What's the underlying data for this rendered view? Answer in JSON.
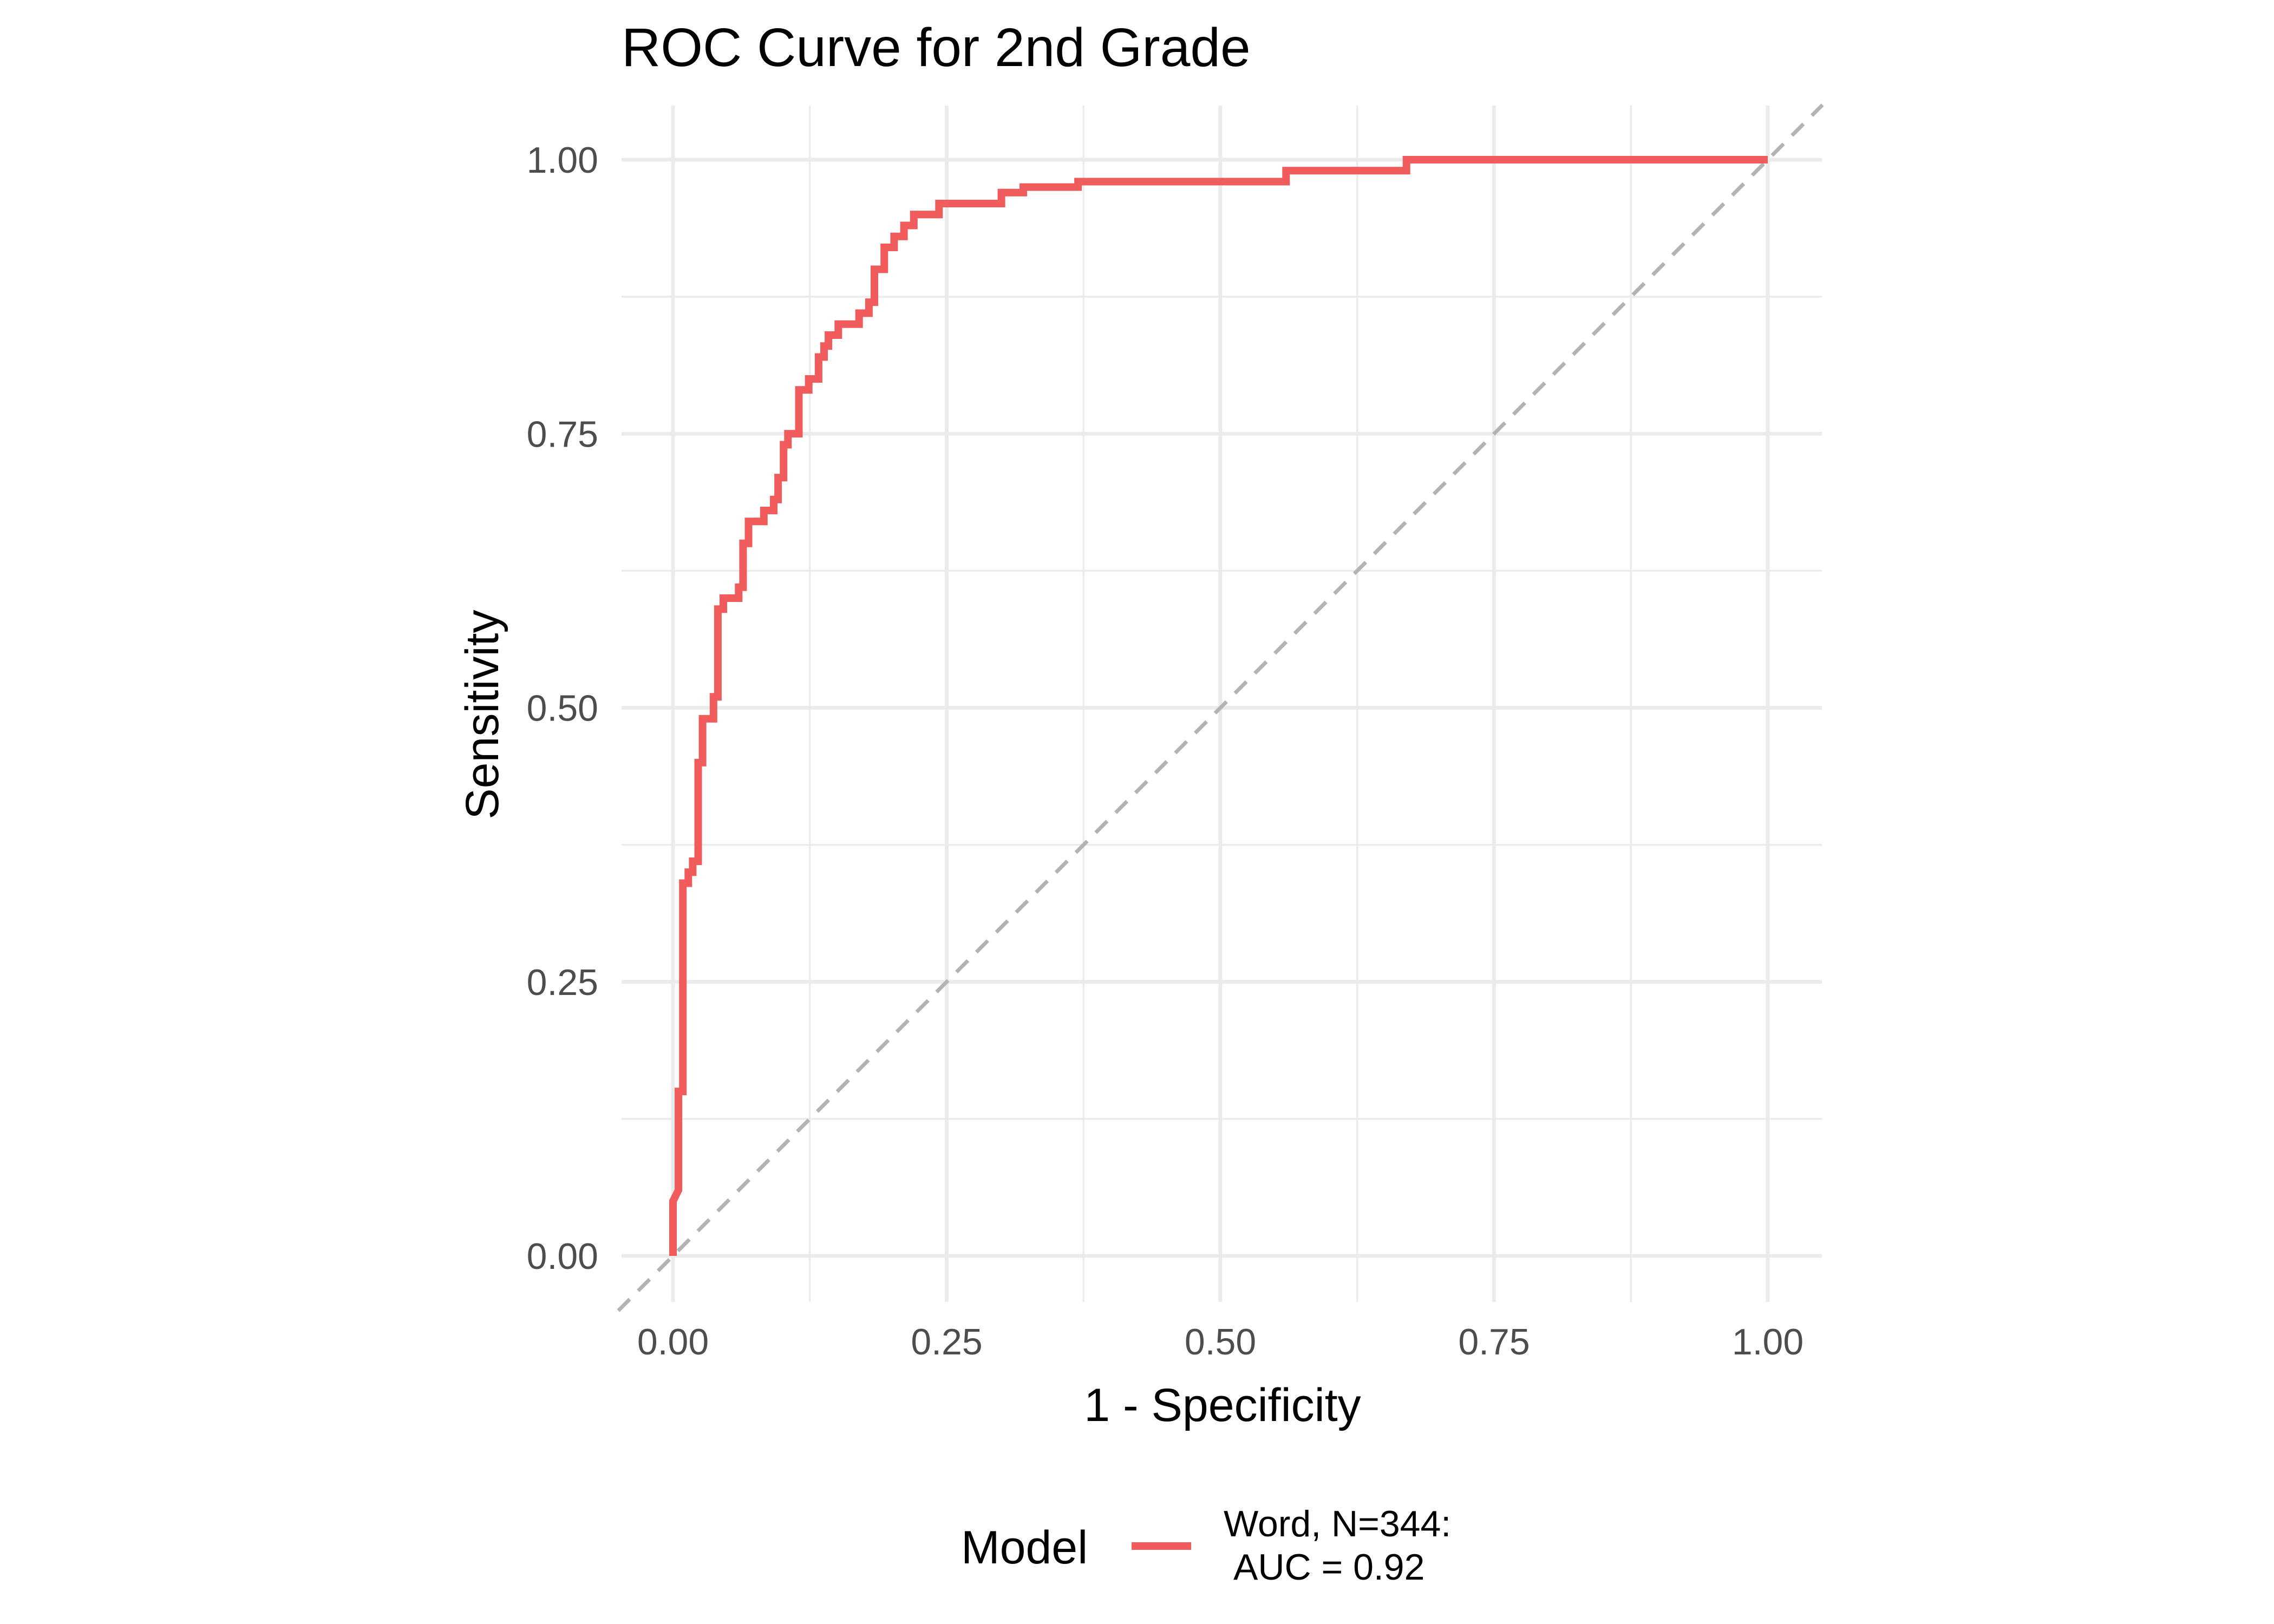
{
  "chart_data": {
    "type": "line",
    "title": "ROC Curve for 2nd Grade",
    "xlabel": "1 - Specificity",
    "ylabel": "Sensitivity",
    "xlim": [
      -0.05,
      1.05
    ],
    "ylim": [
      -0.05,
      1.03
    ],
    "x_ticks": [
      0,
      0.25,
      0.5,
      0.75,
      1
    ],
    "x_tick_labels": [
      "0.00",
      "0.25",
      "0.50",
      "0.75",
      "1.00"
    ],
    "y_ticks": [
      0,
      0.25,
      0.5,
      0.75,
      1
    ],
    "y_tick_labels": [
      "0.00",
      "0.25",
      "0.50",
      "0.75",
      "1.00"
    ],
    "grid": true,
    "legend": {
      "title": "Model",
      "position": "bottom",
      "entries": [
        {
          "line1": "Word, N=344:",
          "line2": "AUC = 0.92",
          "color": "#f05c5c"
        }
      ]
    },
    "reference_line": {
      "style": "dashed",
      "color": "#b3b3b3",
      "from": [
        0,
        0
      ],
      "to": [
        1,
        1
      ]
    },
    "series": [
      {
        "label": "Word, N=344:\nAUC = 0.92",
        "color": "#f05c5c",
        "x": [
          0,
          0,
          0.005,
          0.005,
          0.009,
          0.009,
          0.014,
          0.014,
          0.018,
          0.018,
          0.023,
          0.023,
          0.027,
          0.027,
          0.037,
          0.037,
          0.041,
          0.041,
          0.046,
          0.046,
          0.06,
          0.06,
          0.064,
          0.064,
          0.069,
          0.069,
          0.083,
          0.083,
          0.092,
          0.092,
          0.096,
          0.096,
          0.101,
          0.101,
          0.105,
          0.105,
          0.115,
          0.115,
          0.124,
          0.124,
          0.133,
          0.133,
          0.138,
          0.138,
          0.142,
          0.142,
          0.151,
          0.151,
          0.17,
          0.17,
          0.179,
          0.179,
          0.184,
          0.184,
          0.193,
          0.193,
          0.202,
          0.202,
          0.211,
          0.211,
          0.22,
          0.22,
          0.243,
          0.243,
          0.3,
          0.3,
          0.32,
          0.32,
          0.37,
          0.37,
          0.56,
          0.56,
          0.67,
          0.67,
          1
        ],
        "y": [
          0,
          0.05,
          0.06,
          0.15,
          0.15,
          0.34,
          0.34,
          0.35,
          0.35,
          0.36,
          0.36,
          0.45,
          0.45,
          0.49,
          0.49,
          0.51,
          0.51,
          0.59,
          0.59,
          0.6,
          0.6,
          0.61,
          0.61,
          0.65,
          0.65,
          0.67,
          0.67,
          0.68,
          0.68,
          0.69,
          0.69,
          0.71,
          0.71,
          0.74,
          0.74,
          0.75,
          0.75,
          0.79,
          0.79,
          0.8,
          0.8,
          0.82,
          0.82,
          0.83,
          0.83,
          0.84,
          0.84,
          0.85,
          0.85,
          0.86,
          0.86,
          0.87,
          0.87,
          0.9,
          0.9,
          0.92,
          0.92,
          0.93,
          0.93,
          0.94,
          0.94,
          0.95,
          0.95,
          0.96,
          0.96,
          0.97,
          0.97,
          0.975,
          0.975,
          0.98,
          0.98,
          0.99,
          0.99,
          1,
          1
        ]
      }
    ]
  }
}
